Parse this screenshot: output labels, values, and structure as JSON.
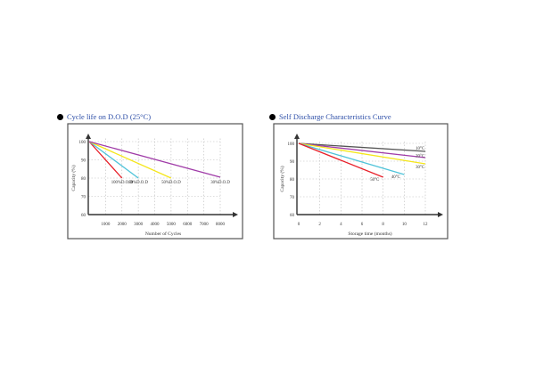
{
  "chart_data": [
    {
      "type": "line",
      "title": "Cycle life on D.O.D (25°C)",
      "xlabel": "Number of Cycles",
      "ylabel": "Capacity (%)",
      "xlim": [
        0,
        8500
      ],
      "ylim": [
        60,
        100
      ],
      "x_ticks": [
        1000,
        2000,
        3000,
        4000,
        5000,
        6000,
        7000,
        8000
      ],
      "y_ticks": [
        60,
        70,
        80,
        90,
        100
      ],
      "grid": true,
      "series": [
        {
          "name": "100%D.O.D",
          "color": "#e8202a",
          "x": [
            0,
            2000
          ],
          "y": [
            100,
            80
          ]
        },
        {
          "name": "80%D.O.D",
          "color": "#4fc3d9",
          "x": [
            0,
            3000
          ],
          "y": [
            100,
            80
          ]
        },
        {
          "name": "50%D.O.D",
          "color": "#f5e61a",
          "x": [
            0,
            5000
          ],
          "y": [
            100,
            80
          ]
        },
        {
          "name": "30%D.O.D",
          "color": "#a03ca8",
          "x": [
            0,
            8000
          ],
          "y": [
            100,
            80.5
          ]
        }
      ],
      "annotations": [
        {
          "text": "100%D.O.D",
          "x": 2000,
          "y": 78
        },
        {
          "text": "80%D.O.D",
          "x": 3000,
          "y": 78
        },
        {
          "text": "50%D.O.D",
          "x": 5000,
          "y": 78
        },
        {
          "text": "30%D.O.D",
          "x": 8000,
          "y": 78
        }
      ]
    },
    {
      "type": "line",
      "title": "Self Discharge Characteristics Curve",
      "xlabel": "Storage time (months)",
      "ylabel": "Capacity (%)",
      "xlim": [
        0,
        12.5
      ],
      "ylim": [
        60,
        100
      ],
      "x_ticks": [
        0,
        2,
        4,
        6,
        8,
        10,
        12
      ],
      "y_ticks": [
        60,
        70,
        80,
        90,
        100
      ],
      "grid": true,
      "series": [
        {
          "name": "10°C",
          "color": "#555555",
          "x": [
            0,
            12
          ],
          "y": [
            100,
            95.5
          ]
        },
        {
          "name": "20°C",
          "color": "#a03ca8",
          "x": [
            0,
            12
          ],
          "y": [
            100,
            92
          ]
        },
        {
          "name": "30°C",
          "color": "#f5e61a",
          "x": [
            0,
            12
          ],
          "y": [
            100,
            88.5
          ]
        },
        {
          "name": "40°C",
          "color": "#4fc3d9",
          "x": [
            0,
            10
          ],
          "y": [
            100,
            82.5
          ]
        },
        {
          "name": "50°C",
          "color": "#e8202a",
          "x": [
            0,
            8
          ],
          "y": [
            100,
            81
          ]
        }
      ],
      "annotations": [
        {
          "text": "10°C",
          "x": 11.5,
          "y": 97.5
        },
        {
          "text": "20°C",
          "x": 11.5,
          "y": 93.3
        },
        {
          "text": "30°C",
          "x": 11.5,
          "y": 87
        },
        {
          "text": "40°C",
          "x": 9.2,
          "y": 81.5
        },
        {
          "text": "50°C",
          "x": 7.2,
          "y": 80
        }
      ]
    }
  ]
}
